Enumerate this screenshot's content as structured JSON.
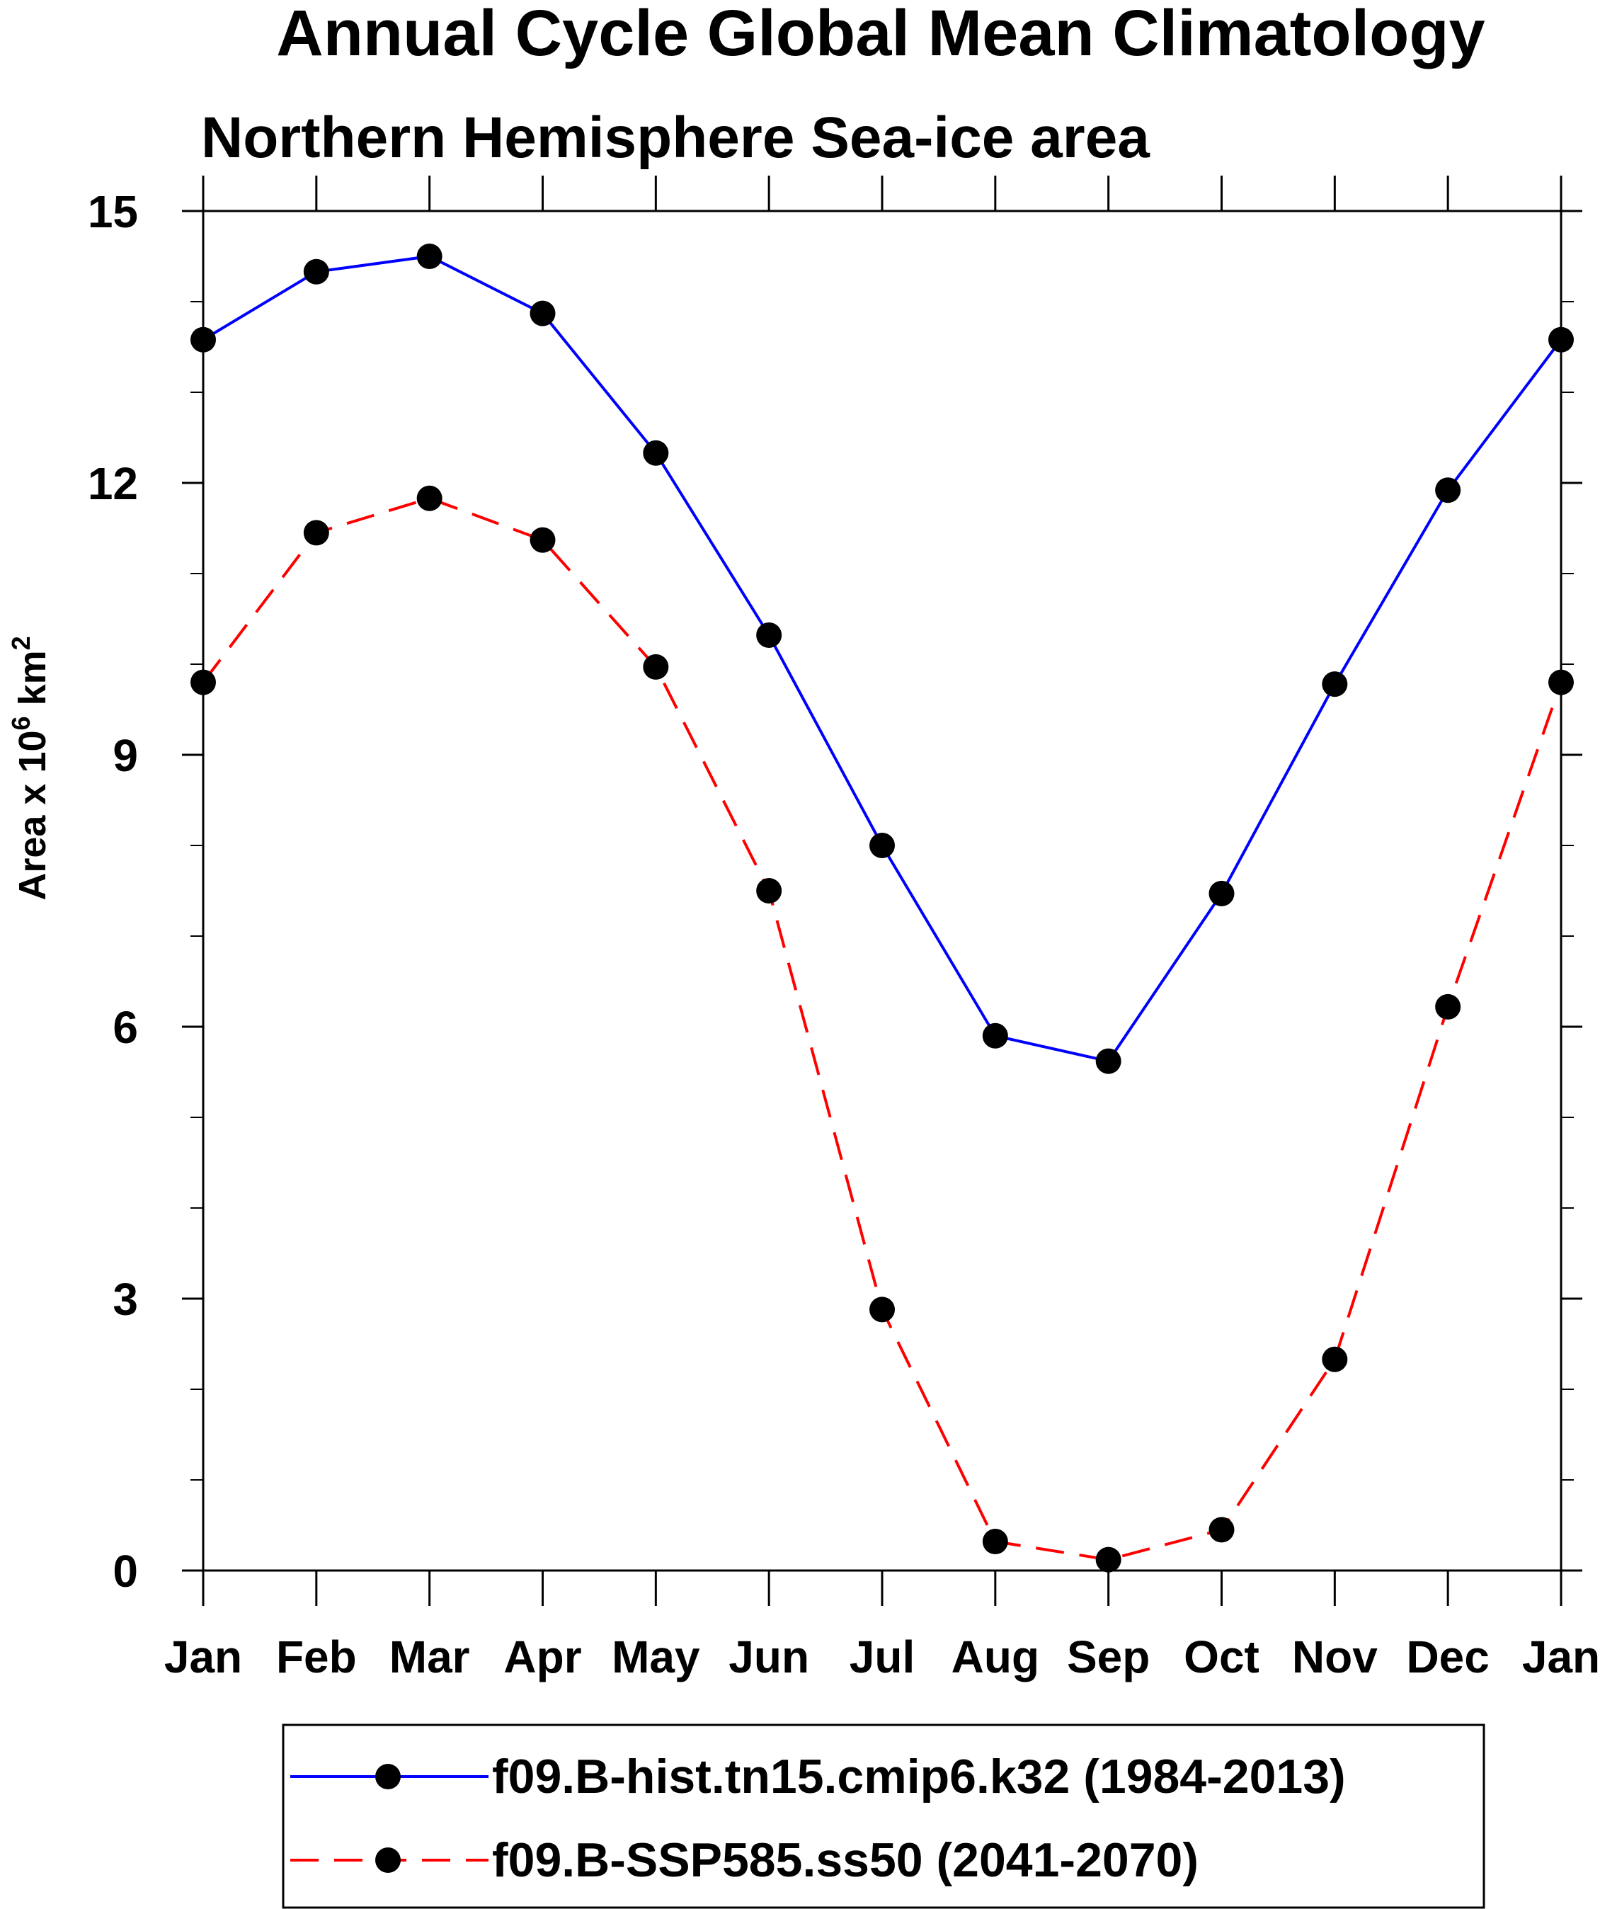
{
  "chart_data": {
    "type": "line",
    "title": "Annual Cycle Global Mean Climatology",
    "subtitle": "Northern Hemisphere Sea-ice area",
    "ylabel_main": "Area x 10",
    "ylabel_exp": "6",
    "ylabel_unit": "km",
    "ylabel_unit_exp": "2",
    "xlabel": "",
    "ylim": [
      0,
      15
    ],
    "yticks_major": [
      0,
      3,
      6,
      9,
      12,
      15
    ],
    "yticks_minor": [
      1,
      2,
      4,
      5,
      7,
      8,
      10,
      11,
      13,
      14
    ],
    "categories": [
      "Jan",
      "Feb",
      "Mar",
      "Apr",
      "May",
      "Jun",
      "Jul",
      "Aug",
      "Sep",
      "Oct",
      "Nov",
      "Dec",
      "Jan"
    ],
    "grid": false,
    "legend_position": "bottom",
    "series": [
      {
        "name": "f09.B-hist.tn15.cmip6.k32 (1984-2013)",
        "color": "#0000ff",
        "line_style": "solid",
        "marker": "filled-circle",
        "marker_color": "#000000",
        "values": [
          13.58,
          14.33,
          14.5,
          13.87,
          12.33,
          10.32,
          8.0,
          5.9,
          5.62,
          7.47,
          9.78,
          11.92,
          13.58
        ]
      },
      {
        "name": "f09.B-SSP585.ss50 (2041-2070)",
        "color": "#ff0000",
        "line_style": "dashed",
        "marker": "filled-circle",
        "marker_color": "#000000",
        "values": [
          9.8,
          11.45,
          11.83,
          11.37,
          9.97,
          7.5,
          2.88,
          0.32,
          0.12,
          0.45,
          2.33,
          6.22,
          9.8
        ]
      }
    ]
  }
}
